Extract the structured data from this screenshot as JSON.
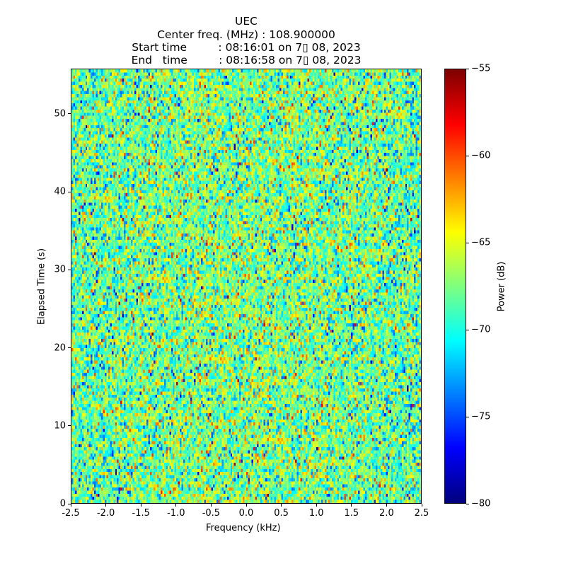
{
  "chart_data": {
    "type": "heatmap",
    "title_lines": [
      "UEC",
      "Center freq. (MHz) : 108.900000",
      "Start time         : 08:16:01 on 7▯ 08, 2023",
      "End   time         : 08:16:58 on 7▯ 08, 2023"
    ],
    "xlabel": "Frequency (kHz)",
    "ylabel": "Elapsed Time (s)",
    "xlim": [
      -2.5,
      2.5
    ],
    "ylim": [
      0,
      55.8
    ],
    "xticks": [
      "-2.5",
      "-2.0",
      "-1.5",
      "-1.0",
      "-0.5",
      "0.0",
      "0.5",
      "1.0",
      "1.5",
      "2.0",
      "2.5"
    ],
    "yticks": [
      "0",
      "10",
      "20",
      "30",
      "40",
      "50"
    ],
    "colormap": "jet",
    "colorbar": {
      "label": "Power (dB)",
      "range": [
        -80,
        -55
      ],
      "ticks": [
        "−80",
        "−75",
        "−70",
        "−65",
        "−60",
        "−55"
      ]
    },
    "grid": [
      200,
      140
    ],
    "noise": {
      "mean_db": -68.5,
      "std_db": 3.2,
      "center_boost_db": 1.0
    }
  }
}
